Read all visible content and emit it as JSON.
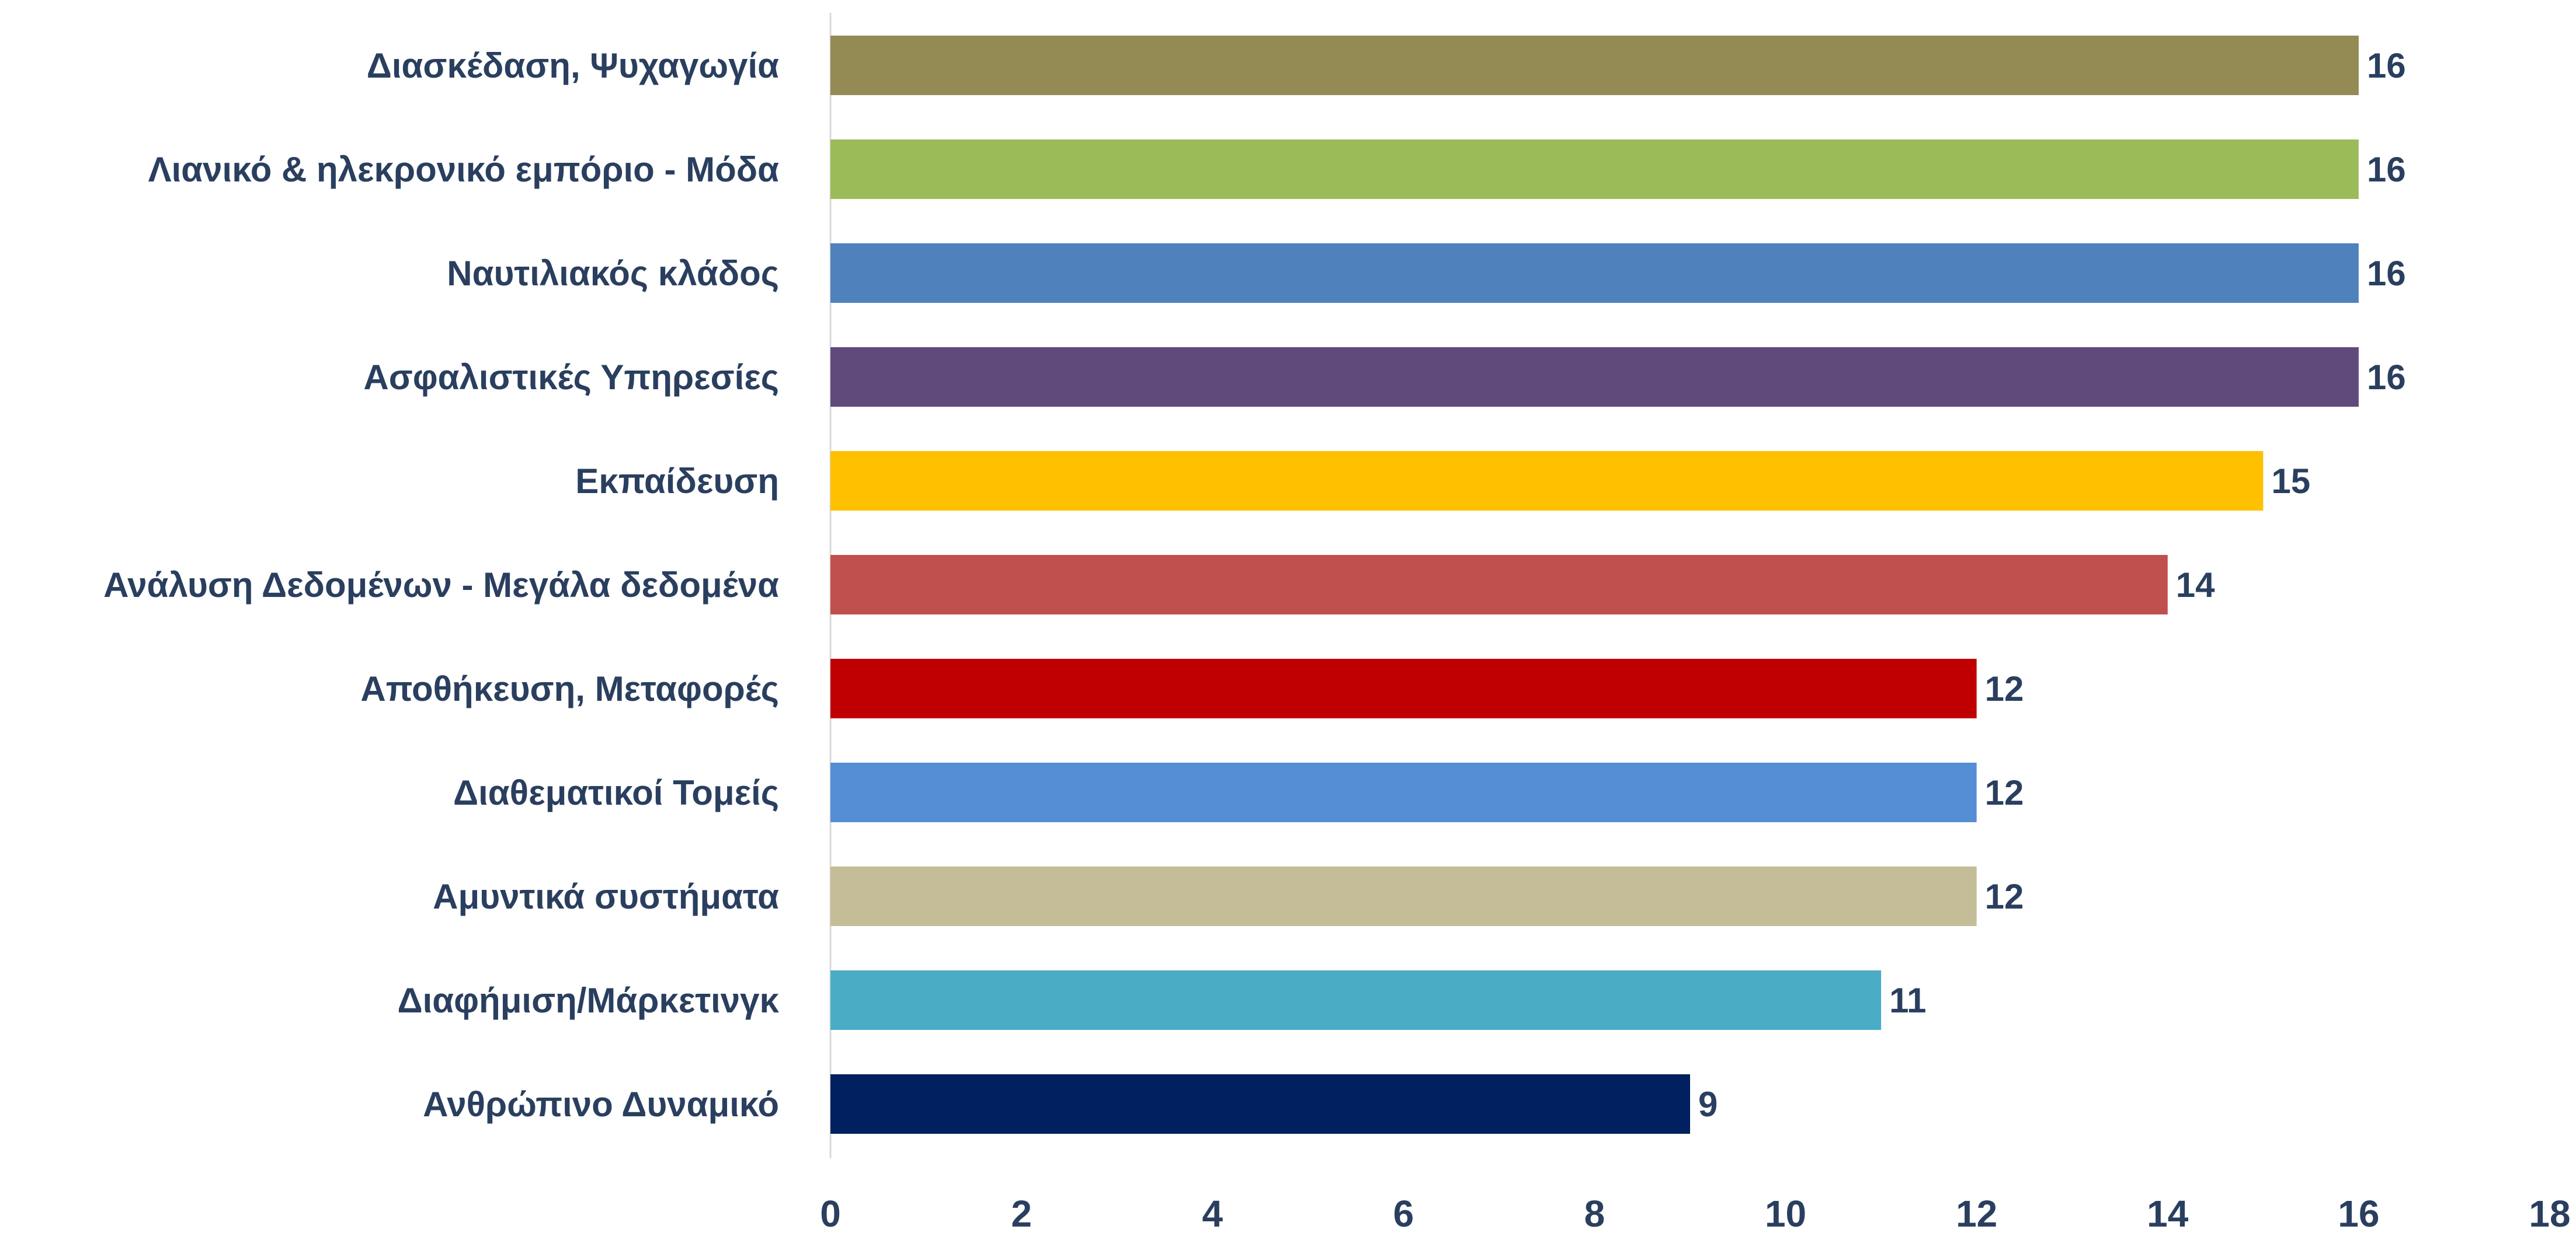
{
  "chart_data": {
    "type": "bar",
    "orientation": "horizontal",
    "categories": [
      "Διασκέδαση, Ψυχαγωγία",
      "Λιανικό & ηλεκρονικό εμπόριο - Μόδα",
      "Ναυτιλιακός κλάδος",
      "Ασφαλιστικές Υπηρεσίες",
      "Εκπαίδευση",
      "Ανάλυση Δεδομένων - Μεγάλα δεδομένα",
      "Αποθήκευση, Μεταφορές",
      "Διαθεματικοί Τομείς",
      "Αμυντικά συστήματα",
      "Διαφήμιση/Μάρκετινγκ",
      "Ανθρώπινο Δυναμικό"
    ],
    "values": [
      16,
      16,
      16,
      16,
      15,
      14,
      12,
      12,
      12,
      11,
      9
    ],
    "value_labels": [
      "16",
      "16",
      "16",
      "16",
      "15",
      "14",
      "12",
      "12",
      "12",
      "11",
      "9"
    ],
    "colors": [
      "#948a54",
      "#9bbb59",
      "#4f81bd",
      "#604a7b",
      "#ffc000",
      "#c0504d",
      "#c00000",
      "#558ed5",
      "#c4bd97",
      "#4bacc6",
      "#002060"
    ],
    "xlim": [
      0,
      18
    ],
    "xticks": [
      0,
      2,
      4,
      6,
      8,
      10,
      12,
      14,
      16,
      18
    ],
    "xtick_labels": [
      "0",
      "2",
      "4",
      "6",
      "8",
      "10",
      "12",
      "14",
      "16",
      "18"
    ],
    "title": "",
    "xlabel": "",
    "ylabel": "",
    "grid": false,
    "legend": "none"
  }
}
